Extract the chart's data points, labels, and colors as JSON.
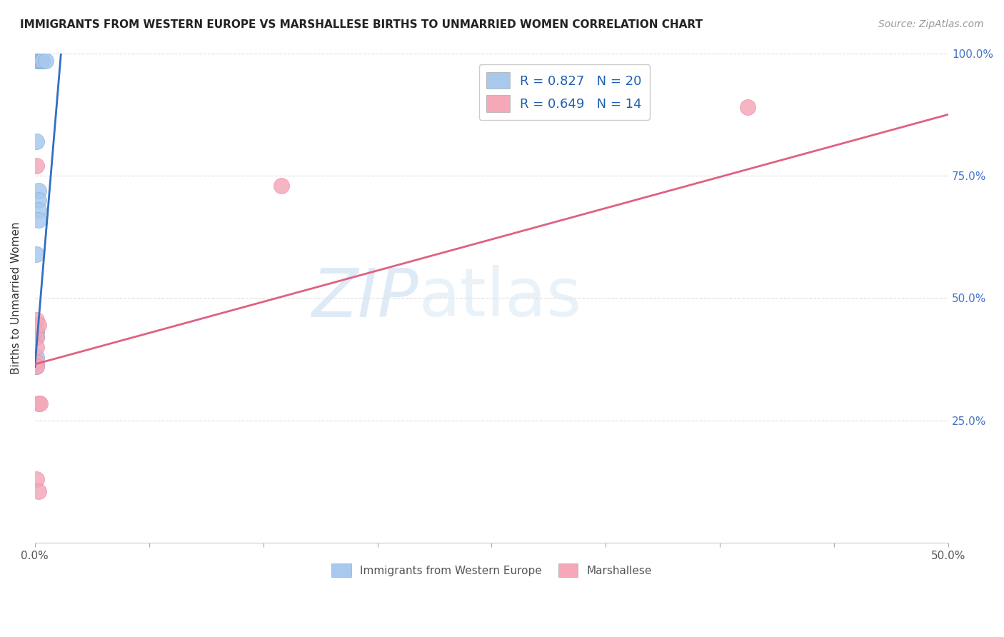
{
  "title": "IMMIGRANTS FROM WESTERN EUROPE VS MARSHALLESE BIRTHS TO UNMARRIED WOMEN CORRELATION CHART",
  "source": "Source: ZipAtlas.com",
  "ylabel": "Births to Unmarried Women",
  "xlim": [
    0.0,
    0.5
  ],
  "ylim": [
    0.0,
    1.0
  ],
  "xticks": [
    0.0,
    0.0625,
    0.125,
    0.1875,
    0.25,
    0.3125,
    0.375,
    0.4375,
    0.5
  ],
  "xticklabels_show": {
    "0.0": "0.0%",
    "0.5": "50.0%"
  },
  "yticks": [
    0.0,
    0.25,
    0.5,
    0.75,
    1.0
  ],
  "yticklabels": [
    "",
    "25.0%",
    "50.0%",
    "75.0%",
    "100.0%"
  ],
  "watermark_zip": "ZIP",
  "watermark_atlas": "atlas",
  "legend_label1": "Immigrants from Western Europe",
  "legend_label2": "Marshallese",
  "blue_color": "#a8c8ee",
  "pink_color": "#f4a8b8",
  "blue_scatter_edge": "#7aaed6",
  "pink_scatter_edge": "#e888a8",
  "blue_line_color": "#3070c0",
  "pink_line_color": "#e06080",
  "blue_scatter": [
    [
      0.001,
      0.985
    ],
    [
      0.003,
      0.985
    ],
    [
      0.003,
      0.985
    ],
    [
      0.003,
      0.985
    ],
    [
      0.003,
      0.985
    ],
    [
      0.003,
      0.985
    ],
    [
      0.003,
      0.985
    ],
    [
      0.004,
      0.985
    ],
    [
      0.004,
      0.985
    ],
    [
      0.006,
      0.985
    ],
    [
      0.001,
      0.82
    ],
    [
      0.002,
      0.72
    ],
    [
      0.002,
      0.7
    ],
    [
      0.002,
      0.68
    ],
    [
      0.002,
      0.66
    ],
    [
      0.001,
      0.59
    ],
    [
      0.001,
      0.43
    ],
    [
      0.001,
      0.42
    ],
    [
      0.001,
      0.38
    ],
    [
      0.001,
      0.36
    ]
  ],
  "pink_scatter": [
    [
      0.001,
      0.77
    ],
    [
      0.001,
      0.455
    ],
    [
      0.001,
      0.435
    ],
    [
      0.001,
      0.42
    ],
    [
      0.001,
      0.4
    ],
    [
      0.001,
      0.37
    ],
    [
      0.001,
      0.36
    ],
    [
      0.002,
      0.445
    ],
    [
      0.002,
      0.285
    ],
    [
      0.003,
      0.285
    ],
    [
      0.135,
      0.73
    ],
    [
      0.39,
      0.89
    ],
    [
      0.001,
      0.13
    ],
    [
      0.002,
      0.105
    ]
  ],
  "blue_line": [
    [
      0.0,
      0.36
    ],
    [
      0.015,
      1.03
    ]
  ],
  "pink_line": [
    [
      0.0,
      0.365
    ],
    [
      0.5,
      0.875
    ]
  ],
  "grid_color": "#dddddd",
  "background_color": "#ffffff",
  "legend_r1": "R = 0.827   N = 20",
  "legend_r2": "R = 0.649   N = 14"
}
